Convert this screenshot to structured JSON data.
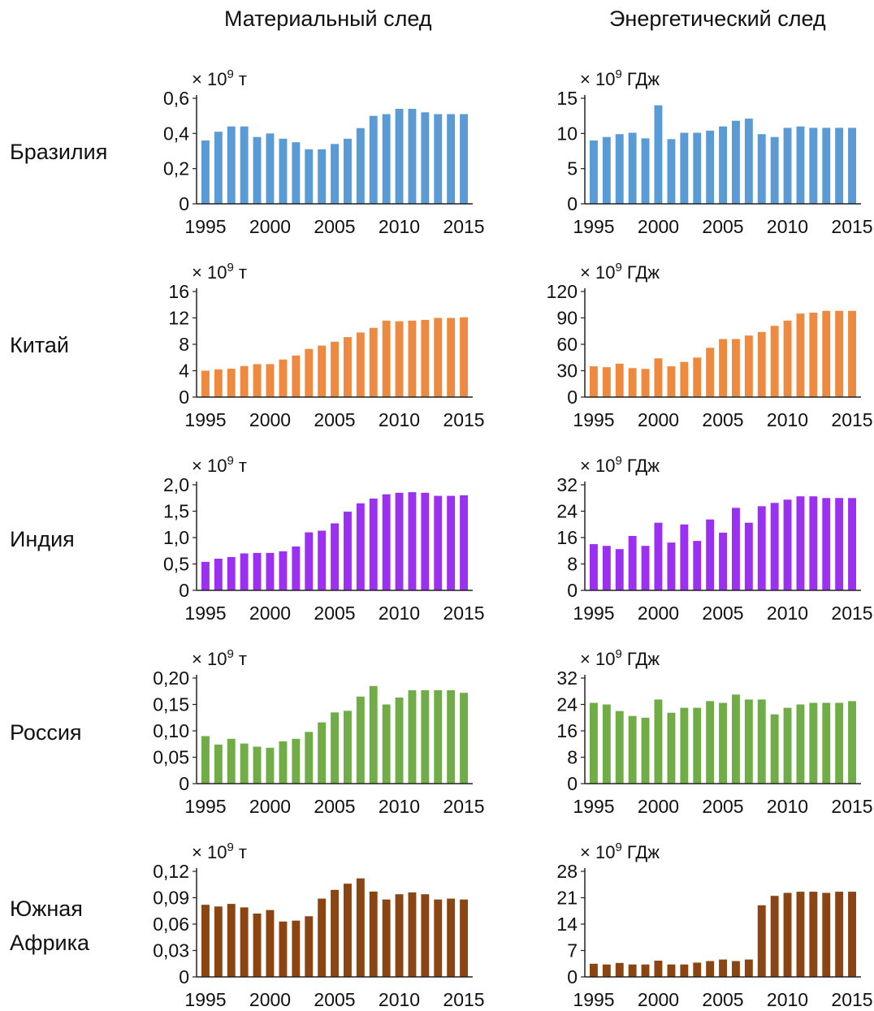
{
  "columns": [
    "Материальный след",
    "Энергетический след"
  ],
  "rows": [
    {
      "label": "Бразилия"
    },
    {
      "label": "Китай"
    },
    {
      "label": "Индия"
    },
    {
      "label": "Россия"
    },
    {
      "label": "Южная Африка"
    }
  ],
  "chart_data": [
    {
      "type": "bar",
      "title": "",
      "country": "Бразилия",
      "column": "Материальный след",
      "unit": "× 10^9 т",
      "color": "#5b9bd5",
      "ylim": [
        0,
        0.6
      ],
      "yticks": [
        "0",
        "0,2",
        "0,4",
        "0,6"
      ],
      "xticks": [
        "1995",
        "2000",
        "2005",
        "2010",
        "2015"
      ],
      "x": [
        1995,
        1996,
        1997,
        1998,
        1999,
        2000,
        2001,
        2002,
        2003,
        2004,
        2005,
        2006,
        2007,
        2008,
        2009,
        2010,
        2011,
        2012,
        2013,
        2014,
        2015
      ],
      "values": [
        0.36,
        0.41,
        0.44,
        0.44,
        0.38,
        0.4,
        0.37,
        0.35,
        0.31,
        0.31,
        0.34,
        0.37,
        0.43,
        0.5,
        0.51,
        0.54,
        0.54,
        0.52,
        0.51,
        0.51,
        0.51
      ]
    },
    {
      "type": "bar",
      "title": "",
      "country": "Бразилия",
      "column": "Энергетический след",
      "unit": "× 10^9 ГДж",
      "color": "#5b9bd5",
      "ylim": [
        0,
        15
      ],
      "yticks": [
        "0",
        "5",
        "10",
        "15"
      ],
      "xticks": [
        "1995",
        "2000",
        "2005",
        "2010",
        "2015"
      ],
      "x": [
        1995,
        1996,
        1997,
        1998,
        1999,
        2000,
        2001,
        2002,
        2003,
        2004,
        2005,
        2006,
        2007,
        2008,
        2009,
        2010,
        2011,
        2012,
        2013,
        2014,
        2015
      ],
      "values": [
        9.0,
        9.5,
        9.9,
        10.1,
        9.3,
        14.0,
        9.2,
        10.1,
        10.1,
        10.4,
        11.0,
        11.8,
        12.1,
        9.9,
        9.5,
        10.8,
        11.0,
        10.8,
        10.8,
        10.8,
        10.8
      ]
    },
    {
      "type": "bar",
      "title": "",
      "country": "Китай",
      "column": "Материальный след",
      "unit": "× 10^9 т",
      "color": "#ed8a3f",
      "ylim": [
        0,
        16
      ],
      "yticks": [
        "0",
        "4",
        "8",
        "12",
        "16"
      ],
      "xticks": [
        "1995",
        "2000",
        "2005",
        "2010",
        "2015"
      ],
      "x": [
        1995,
        1996,
        1997,
        1998,
        1999,
        2000,
        2001,
        2002,
        2003,
        2004,
        2005,
        2006,
        2007,
        2008,
        2009,
        2010,
        2011,
        2012,
        2013,
        2014,
        2015
      ],
      "values": [
        4.0,
        4.2,
        4.3,
        4.7,
        5.0,
        5.0,
        5.7,
        6.3,
        7.3,
        7.8,
        8.4,
        9.1,
        9.8,
        10.5,
        11.6,
        11.5,
        11.6,
        11.7,
        12.0,
        12.0,
        12.1
      ]
    },
    {
      "type": "bar",
      "title": "",
      "country": "Китай",
      "column": "Энергетический след",
      "unit": "× 10^9 ГДж",
      "color": "#ed8a3f",
      "ylim": [
        0,
        120
      ],
      "yticks": [
        "0",
        "30",
        "60",
        "90",
        "120"
      ],
      "xticks": [
        "1995",
        "2000",
        "2005",
        "2010",
        "2015"
      ],
      "x": [
        1995,
        1996,
        1997,
        1998,
        1999,
        2000,
        2001,
        2002,
        2003,
        2004,
        2005,
        2006,
        2007,
        2008,
        2009,
        2010,
        2011,
        2012,
        2013,
        2014,
        2015
      ],
      "values": [
        35,
        34,
        38,
        33,
        32,
        44,
        35,
        40,
        45,
        56,
        66,
        66,
        70,
        74,
        81,
        87,
        95,
        96,
        98,
        98,
        98
      ]
    },
    {
      "type": "bar",
      "title": "",
      "country": "Индия",
      "column": "Материальный след",
      "unit": "× 10^9 т",
      "color": "#9b30f0",
      "ylim": [
        0,
        2.0
      ],
      "yticks": [
        "0",
        "0,5",
        "1,0",
        "1,5",
        "2,0"
      ],
      "xticks": [
        "1995",
        "2000",
        "2005",
        "2010",
        "2015"
      ],
      "x": [
        1995,
        1996,
        1997,
        1998,
        1999,
        2000,
        2001,
        2002,
        2003,
        2004,
        2005,
        2006,
        2007,
        2008,
        2009,
        2010,
        2011,
        2012,
        2013,
        2014,
        2015
      ],
      "values": [
        0.54,
        0.6,
        0.63,
        0.7,
        0.71,
        0.71,
        0.74,
        0.83,
        1.1,
        1.13,
        1.27,
        1.49,
        1.65,
        1.74,
        1.82,
        1.85,
        1.86,
        1.85,
        1.79,
        1.79,
        1.8
      ]
    },
    {
      "type": "bar",
      "title": "",
      "country": "Индия",
      "column": "Энергетический след",
      "unit": "× 10^9 ГДж",
      "color": "#9b30f0",
      "ylim": [
        0,
        32
      ],
      "yticks": [
        "0",
        "8",
        "16",
        "24",
        "32"
      ],
      "xticks": [
        "1995",
        "2000",
        "2005",
        "2010",
        "2015"
      ],
      "x": [
        1995,
        1996,
        1997,
        1998,
        1999,
        2000,
        2001,
        2002,
        2003,
        2004,
        2005,
        2006,
        2007,
        2008,
        2009,
        2010,
        2011,
        2012,
        2013,
        2014,
        2015
      ],
      "values": [
        14.0,
        13.5,
        12.5,
        16.5,
        13.5,
        20.5,
        14.5,
        20.0,
        15.0,
        21.5,
        17.5,
        25.0,
        20.5,
        25.5,
        26.5,
        27.5,
        28.5,
        28.5,
        28.0,
        28.0,
        28.0
      ]
    },
    {
      "type": "bar",
      "title": "",
      "country": "Россия",
      "column": "Материальный след",
      "unit": "× 10^9 т",
      "color": "#70ad47",
      "ylim": [
        0,
        0.2
      ],
      "yticks": [
        "0",
        "0,05",
        "0,10",
        "0,15",
        "0,20"
      ],
      "xticks": [
        "1995",
        "2000",
        "2005",
        "2010",
        "2015"
      ],
      "x": [
        1995,
        1996,
        1997,
        1998,
        1999,
        2000,
        2001,
        2002,
        2003,
        2004,
        2005,
        2006,
        2007,
        2008,
        2009,
        2010,
        2011,
        2012,
        2013,
        2014,
        2015
      ],
      "values": [
        0.09,
        0.074,
        0.085,
        0.076,
        0.07,
        0.068,
        0.08,
        0.085,
        0.098,
        0.116,
        0.135,
        0.138,
        0.165,
        0.185,
        0.15,
        0.163,
        0.177,
        0.177,
        0.177,
        0.177,
        0.172
      ]
    },
    {
      "type": "bar",
      "title": "",
      "country": "Россия",
      "column": "Энергетический след",
      "unit": "× 10^9 ГДж",
      "color": "#70ad47",
      "ylim": [
        0,
        32
      ],
      "yticks": [
        "0",
        "8",
        "16",
        "24",
        "32"
      ],
      "xticks": [
        "1995",
        "2000",
        "2005",
        "2010",
        "2015"
      ],
      "x": [
        1995,
        1996,
        1997,
        1998,
        1999,
        2000,
        2001,
        2002,
        2003,
        2004,
        2005,
        2006,
        2007,
        2008,
        2009,
        2010,
        2011,
        2012,
        2013,
        2014,
        2015
      ],
      "values": [
        24.5,
        24.0,
        22.0,
        20.5,
        20.0,
        25.5,
        21.5,
        23.0,
        23.0,
        25.0,
        24.5,
        27.0,
        25.5,
        25.5,
        21.0,
        23.0,
        24.0,
        24.5,
        24.5,
        24.5,
        25.0
      ]
    },
    {
      "type": "bar",
      "title": "",
      "country": "Южная Африка",
      "column": "Материальный след",
      "unit": "× 10^9 т",
      "color": "#8b4513",
      "ylim": [
        0,
        0.12
      ],
      "yticks": [
        "0",
        "0,03",
        "0,06",
        "0,09",
        "0,12"
      ],
      "xticks": [
        "1995",
        "2000",
        "2005",
        "2010",
        "2015"
      ],
      "x": [
        1995,
        1996,
        1997,
        1998,
        1999,
        2000,
        2001,
        2002,
        2003,
        2004,
        2005,
        2006,
        2007,
        2008,
        2009,
        2010,
        2011,
        2012,
        2013,
        2014,
        2015
      ],
      "values": [
        0.082,
        0.08,
        0.083,
        0.079,
        0.072,
        0.076,
        0.063,
        0.064,
        0.069,
        0.089,
        0.099,
        0.106,
        0.112,
        0.097,
        0.088,
        0.094,
        0.096,
        0.094,
        0.088,
        0.089,
        0.088
      ]
    },
    {
      "type": "bar",
      "title": "",
      "country": "Южная Африка",
      "column": "Энергетический след",
      "unit": "× 10^9 ГДж",
      "color": "#8b4513",
      "ylim": [
        0,
        28
      ],
      "yticks": [
        "0",
        "7",
        "14",
        "21",
        "28"
      ],
      "xticks": [
        "1995",
        "2000",
        "2005",
        "2010",
        "2015"
      ],
      "x": [
        1995,
        1996,
        1997,
        1998,
        1999,
        2000,
        2001,
        2002,
        2003,
        2004,
        2005,
        2006,
        2007,
        2008,
        2009,
        2010,
        2011,
        2012,
        2013,
        2014,
        2015
      ],
      "values": [
        3.5,
        3.3,
        3.7,
        3.3,
        3.3,
        4.3,
        3.3,
        3.3,
        3.8,
        4.2,
        4.6,
        4.2,
        4.6,
        19.0,
        21.5,
        22.3,
        22.6,
        22.6,
        22.3,
        22.6,
        22.6
      ]
    }
  ]
}
